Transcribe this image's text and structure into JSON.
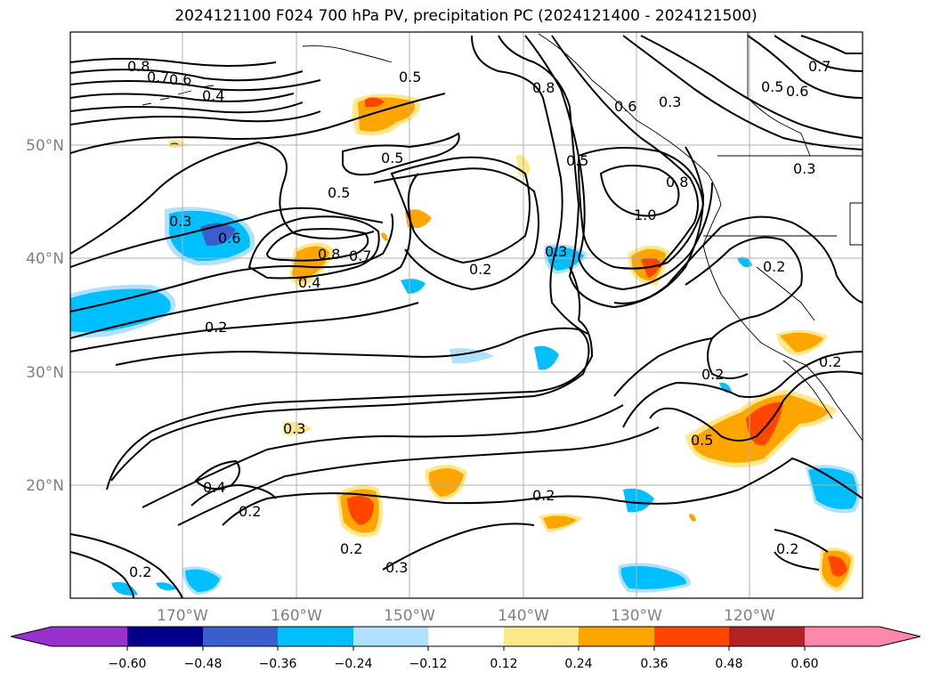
{
  "title": "2024121100 F024 700 hPa PV, precipitation PC (2024121400 - 2024121500)",
  "lat_labels": [
    "50°N",
    "40°N",
    "30°N",
    "20°N"
  ],
  "lon_labels": [
    "170°W",
    "160°W",
    "150°W",
    "140°W",
    "130°W",
    "120°W"
  ],
  "contour_labels": [
    "0.8",
    "0.7",
    "0.6",
    "0.4",
    "0.5",
    "0.8",
    "0.6",
    "0.3",
    "0.5",
    "0.6",
    "0.5",
    "0.3",
    "0.6",
    "0.8",
    "0.7",
    "0.4",
    "0.5",
    "0.3",
    "1.0",
    "0.8",
    "0.2",
    "0.3",
    "0.2",
    "0.2",
    "0.2",
    "0.5",
    "0.3",
    "0.4",
    "0.2",
    "0.2",
    "0.3",
    "0.2",
    "0.2",
    "0.2",
    "0.2",
    "0.5",
    "0.7"
  ],
  "colorbar": {
    "ticks": [
      "−0.60",
      "−0.48",
      "−0.36",
      "−0.24",
      "−0.12",
      "0.12",
      "0.24",
      "0.36",
      "0.48",
      "0.60"
    ],
    "colors": [
      "#9932cc",
      "#00008b",
      "#3a5fcd",
      "#00bfff",
      "#b0e2ff",
      "#ffffff",
      "#ffe88c",
      "#ffa500",
      "#ff4500",
      "#b22222",
      "#ff88aa"
    ]
  },
  "fill_colors": {
    "pos_light": "#ffe88c",
    "pos_mid": "#ffa500",
    "pos_strong": "#ff4500",
    "neg_light": "#b0e2ff",
    "neg_mid": "#00bfff",
    "neg_strong": "#3a5fcd"
  }
}
